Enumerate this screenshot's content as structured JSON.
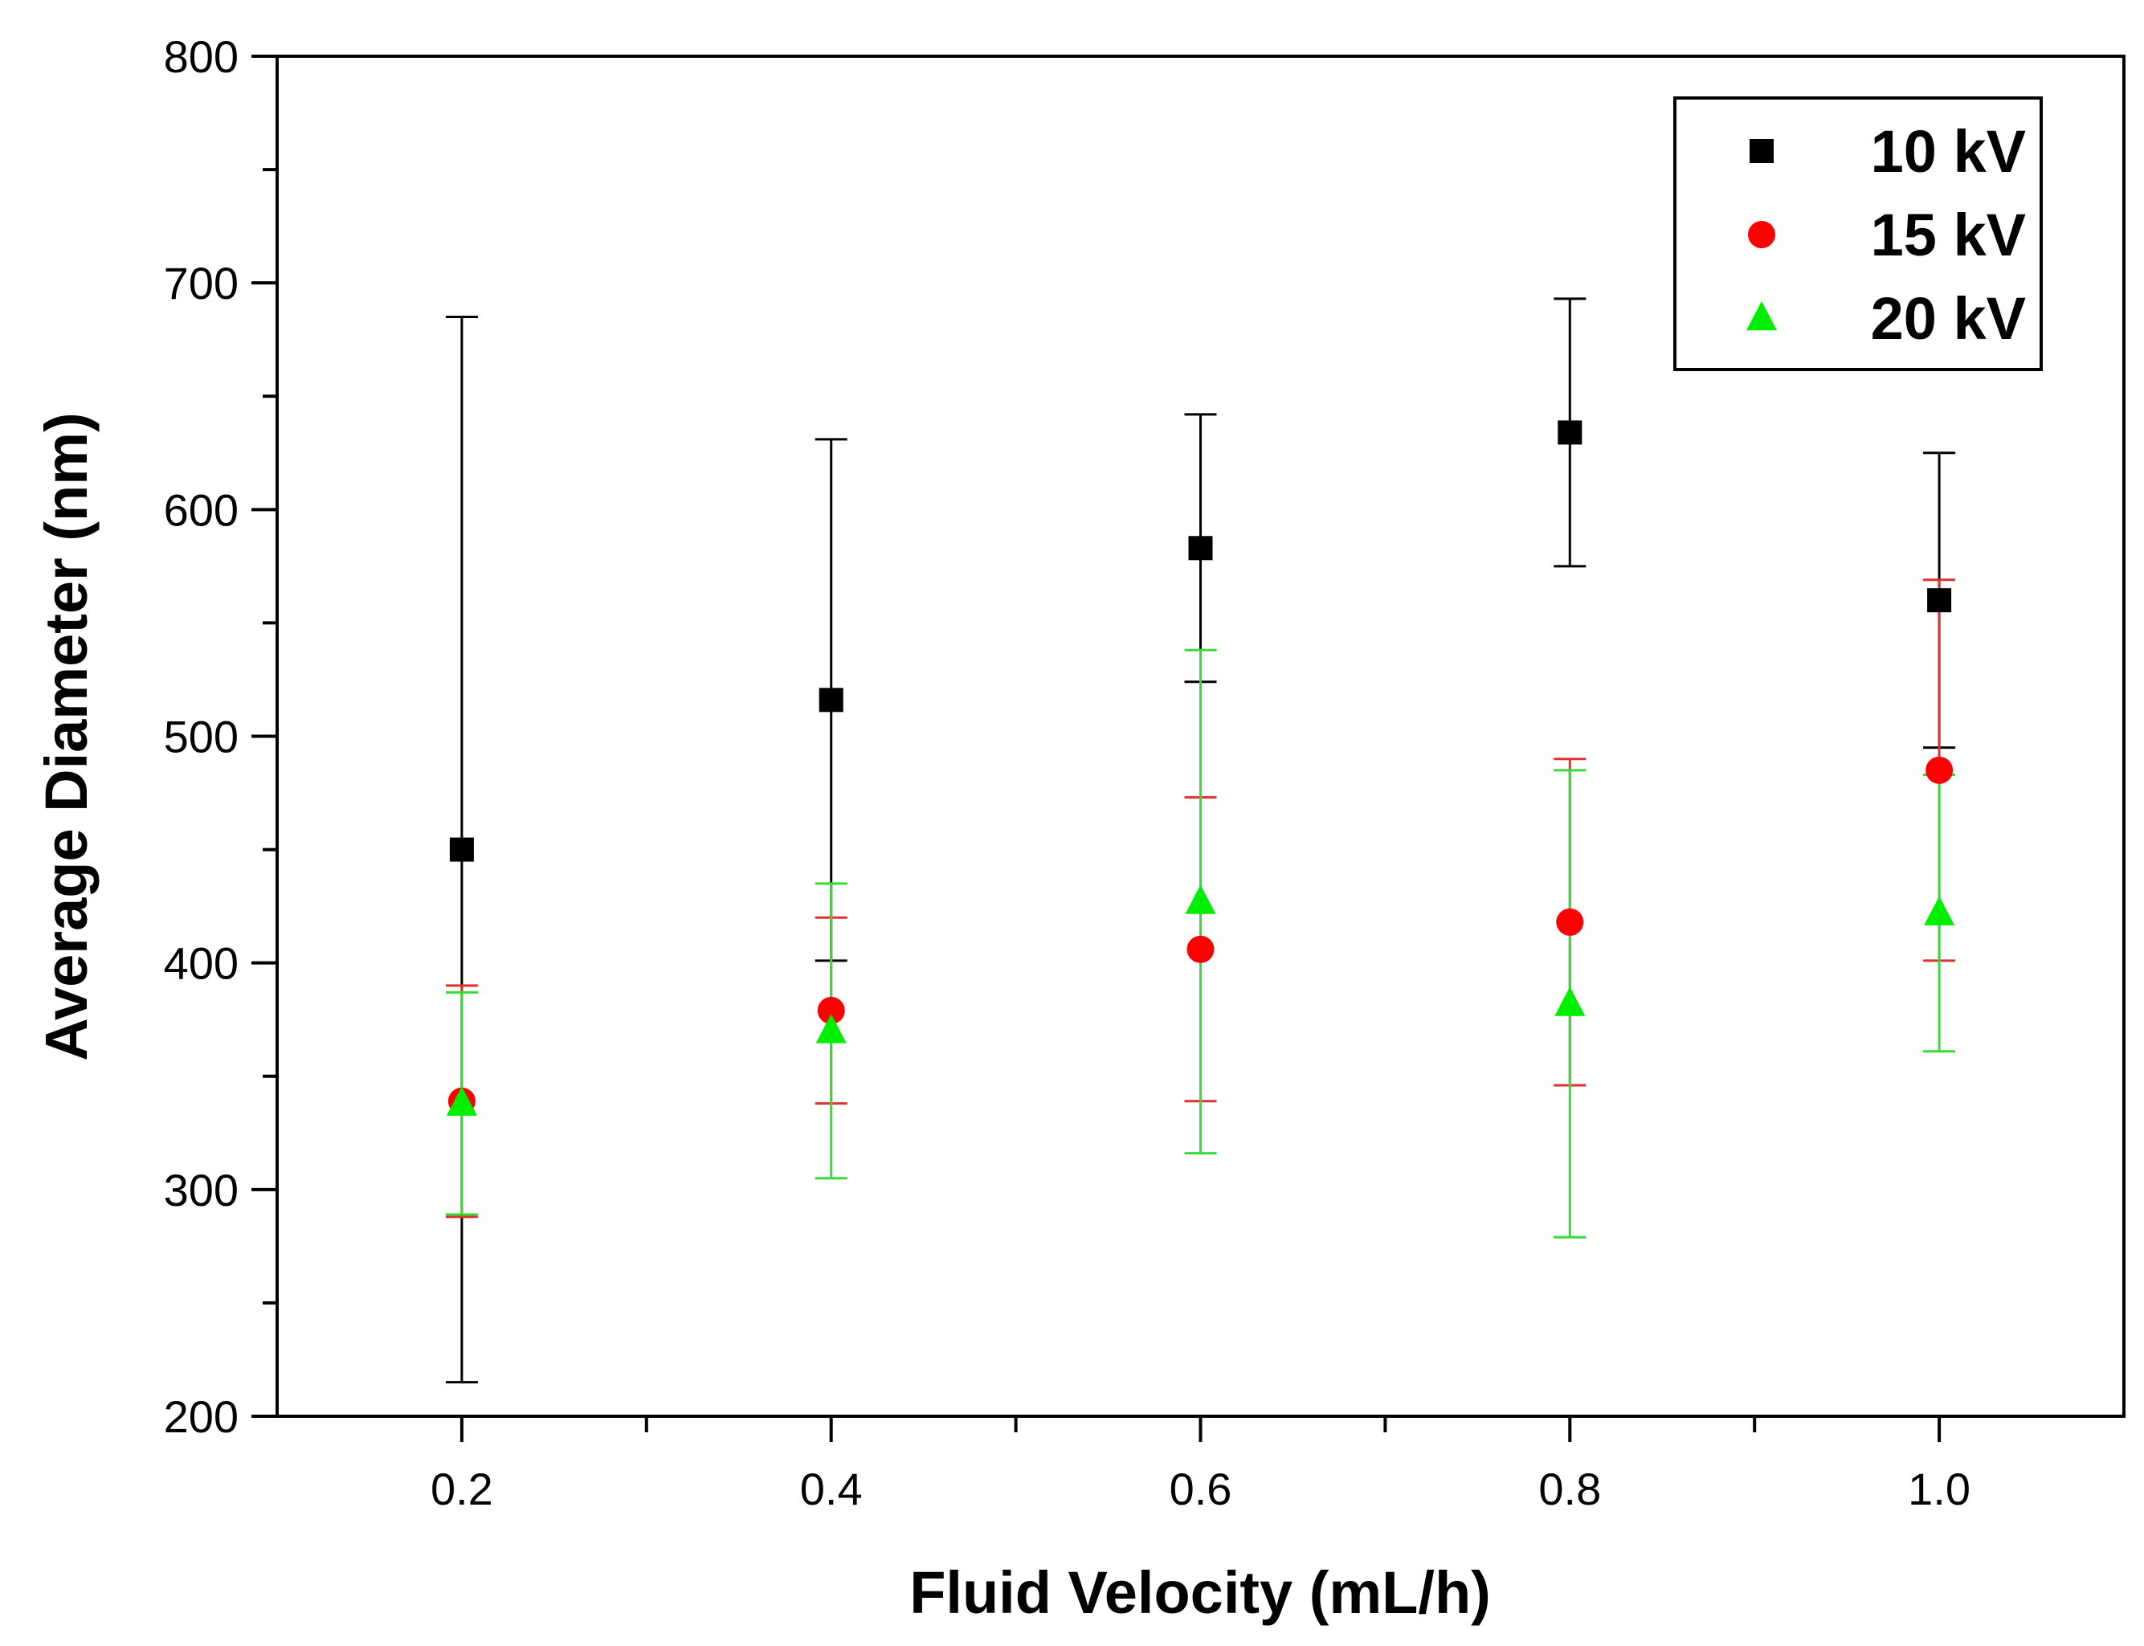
{
  "chart_data": {
    "type": "scatter",
    "title": "",
    "xlabel": "Fluid Velocity (mL/h)",
    "ylabel": "Average Diameter (nm)",
    "xlim": [
      0.1,
      1.1
    ],
    "ylim": [
      200,
      800
    ],
    "x_major_ticks": [
      0.2,
      0.4,
      0.6,
      0.8,
      1.0
    ],
    "x_tick_labels": [
      "0.2",
      "0.4",
      "0.6",
      "0.8",
      "1.0"
    ],
    "x_minor_ticks": [
      0.3,
      0.5,
      0.7,
      0.9
    ],
    "y_major_ticks": [
      200,
      300,
      400,
      500,
      600,
      700,
      800
    ],
    "y_tick_labels": [
      "200",
      "300",
      "400",
      "500",
      "600",
      "700",
      "800"
    ],
    "y_minor_ticks": [
      250,
      350,
      450,
      550,
      650,
      750
    ],
    "grid": false,
    "legend_position": "top-right",
    "series": [
      {
        "name": "10 kV",
        "marker": "square",
        "color": "#000000",
        "error_color": "#000000",
        "x": [
          0.2,
          0.4,
          0.6,
          0.8,
          1.0
        ],
        "y": [
          450,
          516,
          583,
          634,
          560
        ],
        "y_error": [
          235,
          115,
          59,
          59,
          65
        ]
      },
      {
        "name": "15 kV",
        "marker": "circle",
        "color": "#ff0000",
        "error_color": "#e03030",
        "x": [
          0.2,
          0.4,
          0.6,
          0.8,
          1.0
        ],
        "y": [
          339,
          379,
          406,
          418,
          485
        ],
        "y_error": [
          51,
          41,
          67,
          72,
          84
        ]
      },
      {
        "name": "20 kV",
        "marker": "triangle",
        "color": "#00ee00",
        "error_color": "#33dd33",
        "x": [
          0.2,
          0.4,
          0.6,
          0.8,
          1.0
        ],
        "y": [
          338,
          370,
          427,
          382,
          422
        ],
        "y_error": [
          49,
          65,
          111,
          103,
          61
        ]
      }
    ]
  }
}
